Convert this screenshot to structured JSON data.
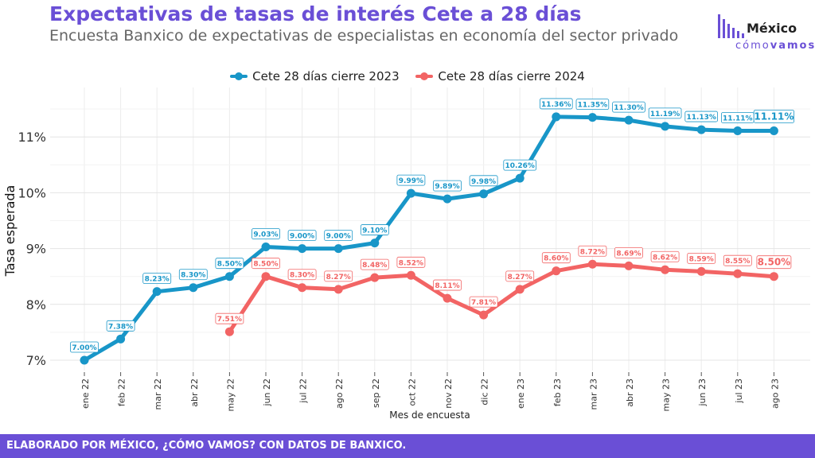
{
  "header": {
    "title": "Expectativas de tasas de interés Cete a 28 días",
    "subtitle": "Encuesta Banxico de expectativas de especialistas en economía del sector privado"
  },
  "logo": {
    "top": "México",
    "bottom_light": "cómo",
    "bottom_bold": "vamos"
  },
  "footer": {
    "text": "ELABORADO POR MÉXICO, ¿CÓMO VAMOS? CON DATOS DE BANXICO."
  },
  "colors": {
    "series_2023": "#1896c8",
    "series_2024": "#f26464",
    "accent": "#6a4fd6"
  },
  "chart_data": {
    "type": "line",
    "xlabel": "Mes de encuesta",
    "ylabel": "Tasa esperada",
    "categories": [
      "ene 22",
      "feb 22",
      "mar 22",
      "abr 22",
      "may 22",
      "jun 22",
      "jul 22",
      "ago 22",
      "sep 22",
      "oct 22",
      "nov 22",
      "dic 22",
      "ene 23",
      "feb 23",
      "mar 23",
      "abr 23",
      "may 23",
      "jun 23",
      "jul 23",
      "ago 23"
    ],
    "y_ticks": [
      "7%",
      "8%",
      "9%",
      "10%",
      "11%"
    ],
    "ylim": [
      6.75,
      11.8
    ],
    "grid": true,
    "legend_position": "top",
    "series": [
      {
        "name": "Cete 28 días cierre 2023",
        "values": [
          7.0,
          7.38,
          8.23,
          8.3,
          8.5,
          9.03,
          9.0,
          9.0,
          9.1,
          9.99,
          9.89,
          9.98,
          10.26,
          11.36,
          11.35,
          11.3,
          11.19,
          11.13,
          11.11,
          11.11
        ],
        "labels": [
          "7.00%",
          "7.38%",
          "8.23%",
          "8.30%",
          "8.50%",
          "9.03%",
          "9.00%",
          "9.00%",
          "9.10%",
          "9.99%",
          "9.89%",
          "9.98%",
          "10.26%",
          "11.36%",
          "11.35%",
          "11.30%",
          "11.19%",
          "11.13%",
          "11.11%",
          "11.11%"
        ]
      },
      {
        "name": "Cete 28 días cierre 2024",
        "values": [
          null,
          null,
          null,
          null,
          7.51,
          8.5,
          8.3,
          8.27,
          8.48,
          8.52,
          8.11,
          7.81,
          8.27,
          8.6,
          8.72,
          8.69,
          8.62,
          8.59,
          8.55,
          8.5
        ],
        "labels": [
          "",
          "",
          "",
          "",
          "7.51%",
          "8.50%",
          "8.30%",
          "8.27%",
          "8.48%",
          "8.52%",
          "8.11%",
          "7.81%",
          "8.27%",
          "8.60%",
          "8.72%",
          "8.69%",
          "8.62%",
          "8.59%",
          "8.55%",
          "8.50%"
        ]
      }
    ]
  }
}
